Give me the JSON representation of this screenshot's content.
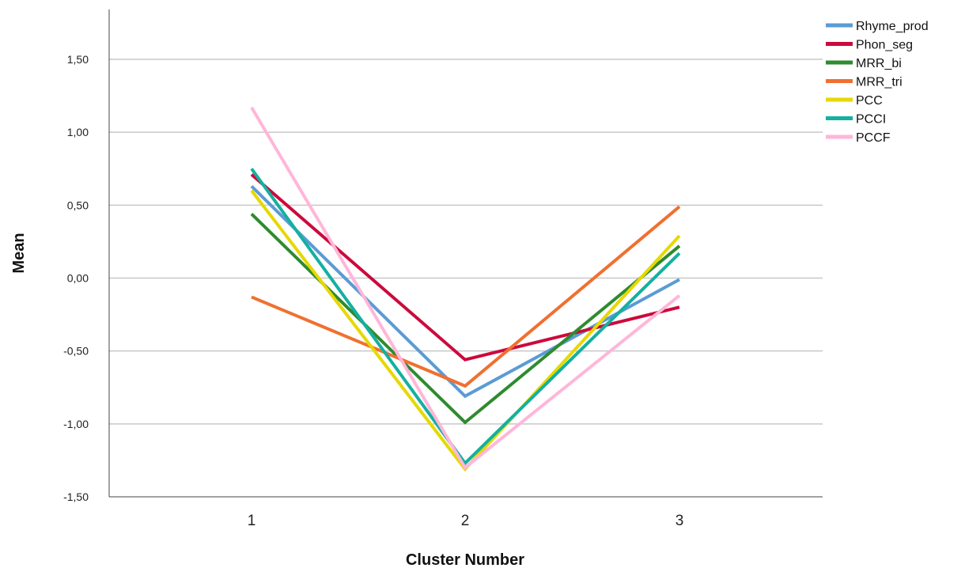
{
  "chart_data": {
    "type": "line",
    "title": "",
    "xlabel": "Cluster Number",
    "ylabel": "Mean",
    "x": [
      "1",
      "2",
      "3"
    ],
    "ylim": [
      -1.5,
      1.5
    ],
    "yticks": [
      "-1,50",
      "-1,00",
      "-0,50",
      "0,00",
      "0,50",
      "1,00",
      "1,50"
    ],
    "grid": true,
    "legend_position": "top-right",
    "series": [
      {
        "name": "Rhyme_prod",
        "color": "#5b9bd5",
        "values": [
          0.63,
          -0.81,
          -0.01
        ]
      },
      {
        "name": "Phon_seg",
        "color": "#cc0a3c",
        "values": [
          0.71,
          -0.56,
          -0.2
        ]
      },
      {
        "name": "MRR_bi",
        "color": "#2e8b2e",
        "values": [
          0.44,
          -0.99,
          0.22
        ]
      },
      {
        "name": "MRR_tri",
        "color": "#f07030",
        "values": [
          -0.13,
          -0.74,
          0.49
        ]
      },
      {
        "name": "PCC",
        "color": "#e6d800",
        "values": [
          0.6,
          -1.31,
          0.29
        ]
      },
      {
        "name": "PCCI",
        "color": "#14b0a0",
        "values": [
          0.75,
          -1.27,
          0.17
        ]
      },
      {
        "name": "PCCF",
        "color": "#ffb6d9",
        "values": [
          1.17,
          -1.3,
          -0.12
        ]
      }
    ]
  }
}
